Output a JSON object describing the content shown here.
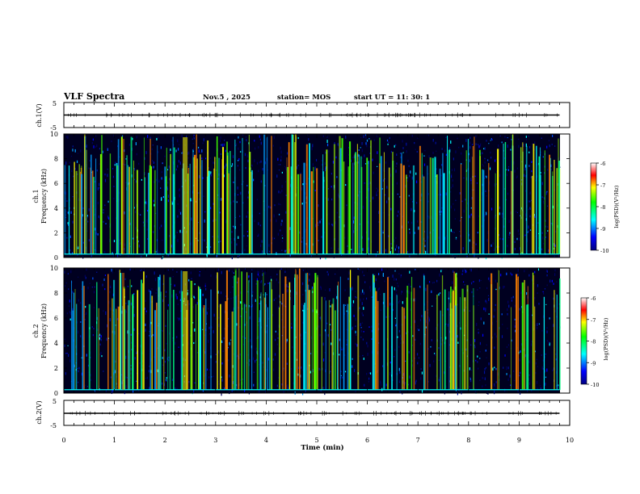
{
  "header": {
    "title": "VLF Spectra",
    "date": "Nov.5 , 2025",
    "station": "station= MOS",
    "start": "start UT = 11: 30: 1"
  },
  "chart_data": [
    {
      "type": "line",
      "name": "ch.1 waveform",
      "ylabel": "ch.1(V)",
      "ylim": [
        -5,
        5
      ],
      "yticks": [
        "5",
        "-5"
      ],
      "x": [
        0,
        9.8
      ],
      "values": [
        0,
        0
      ]
    },
    {
      "type": "heatmap",
      "name": "ch.1 spectrogram",
      "ylabel": "ch.1\nFrequency (kHz)",
      "ylim": [
        0,
        10
      ],
      "yticks": [
        "10",
        "8",
        "6",
        "4",
        "2",
        "0"
      ],
      "xlim": [
        0,
        10
      ],
      "data_end_min": 9.8,
      "colorbar": {
        "label": "log(PSD)(V²/Hz)",
        "range": [
          -10,
          -6
        ],
        "ticks": [
          "-6",
          "-7",
          "-8",
          "-9",
          "-10"
        ]
      }
    },
    {
      "type": "heatmap",
      "name": "ch.2 spectrogram",
      "ylabel": "ch.2\nFrequency (kHz)",
      "ylim": [
        0,
        10
      ],
      "yticks": [
        "10",
        "8",
        "6",
        "4",
        "2",
        "0"
      ],
      "xlim": [
        0,
        10
      ],
      "data_end_min": 9.8,
      "colorbar": {
        "label": "log(PSD)(V²/Hz)",
        "range": [
          -10,
          -6
        ],
        "ticks": [
          "-6",
          "-7",
          "-8",
          "-9",
          "-10"
        ]
      }
    },
    {
      "type": "line",
      "name": "ch.2 waveform",
      "ylabel": "ch.2(V)",
      "ylim": [
        -5,
        5
      ],
      "yticks": [
        "5",
        "-5"
      ],
      "x": [
        0,
        9.8
      ],
      "values": [
        0,
        0
      ]
    }
  ],
  "xaxis": {
    "label": "Time (min)",
    "ticks": [
      "0",
      "1",
      "2",
      "3",
      "4",
      "5",
      "6",
      "7",
      "8",
      "9",
      "10"
    ],
    "range": [
      0,
      10
    ]
  },
  "colors": {
    "background": "#ffffff",
    "frame": "#000000",
    "trace": "#000000"
  }
}
